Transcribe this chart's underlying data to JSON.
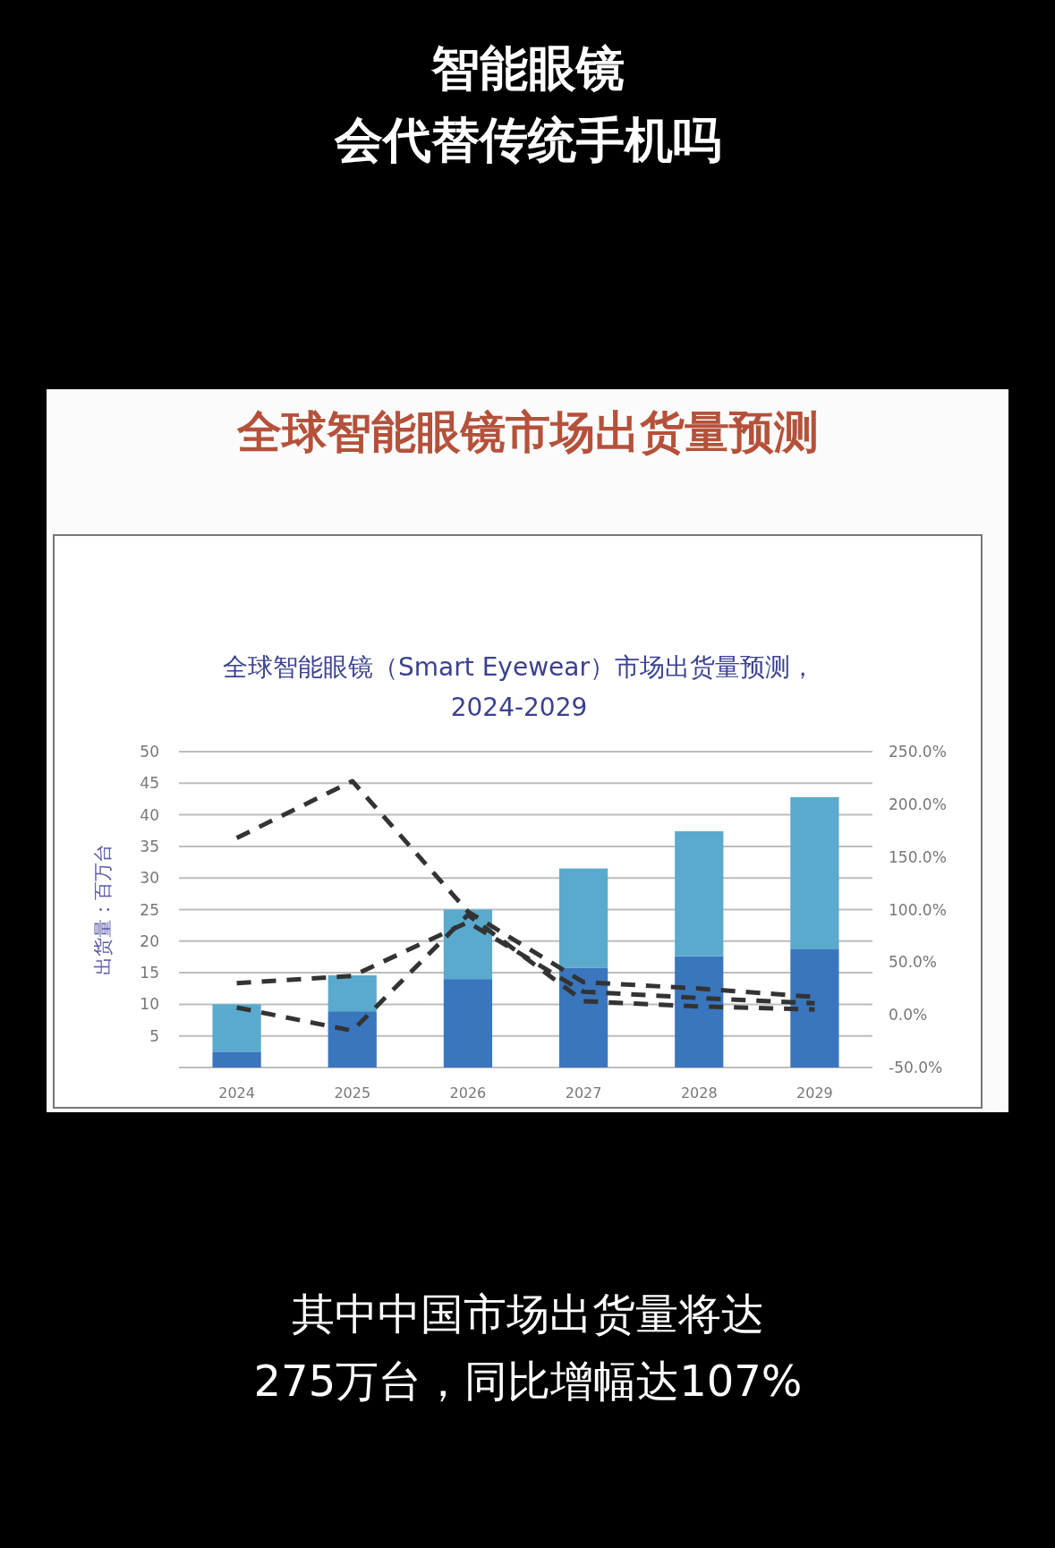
{
  "chart_data": {
    "type": "bar",
    "stacked": true,
    "title": "全球智能眼镜（Smart Eyewear）市场出货量预测，\n2024-2029",
    "ylabel": "出货量：百万台",
    "categories": [
      "2024",
      "2025",
      "2026",
      "2027",
      "2028",
      "2029"
    ],
    "series": [
      {
        "color": "#3a76bd",
        "values": [
          2.5,
          8.9,
          14,
          15.8,
          17.6,
          18.8
        ]
      },
      {
        "color": "#5aaacd",
        "values": [
          7.5,
          5.7,
          11,
          15.7,
          19.8,
          24
        ]
      },
      {
        "type": "line",
        "axis": "y2",
        "color": "#333333",
        "values": [
          168,
          222,
          98,
          31,
          25,
          17
        ]
      },
      {
        "type": "line",
        "axis": "y2",
        "color": "#333333",
        "values": [
          30,
          37,
          88,
          22,
          16,
          11
        ]
      },
      {
        "type": "line",
        "axis": "y2",
        "color": "#333333",
        "values": [
          7,
          -15,
          95,
          13,
          8,
          5
        ]
      }
    ],
    "line_style": "dashed",
    "grid": "y",
    "ylim": [
      0,
      50
    ],
    "yticks": [
      {
        "value": 0,
        "label": null
      },
      5,
      10,
      15,
      20,
      25,
      30,
      35,
      40,
      45,
      50
    ],
    "y2lim": [
      -50,
      250
    ],
    "y2ticks": [
      {
        "value": -50,
        "label": "-50.0%"
      },
      {
        "value": 0,
        "label": "0.0%"
      },
      {
        "value": 50,
        "label": "50.0%"
      },
      {
        "value": 100,
        "label": "100.0%"
      },
      {
        "value": 150,
        "label": "150.0%"
      },
      {
        "value": 200,
        "label": "200.0%"
      },
      {
        "value": 250,
        "label": "250.0%"
      }
    ],
    "annotations": [
      "智能眼镜",
      "会代替传统手机吗",
      "全球智能眼镜市场出货量预测",
      "其中中国市场出货量将达",
      "275万台，同比增幅达107%"
    ]
  }
}
